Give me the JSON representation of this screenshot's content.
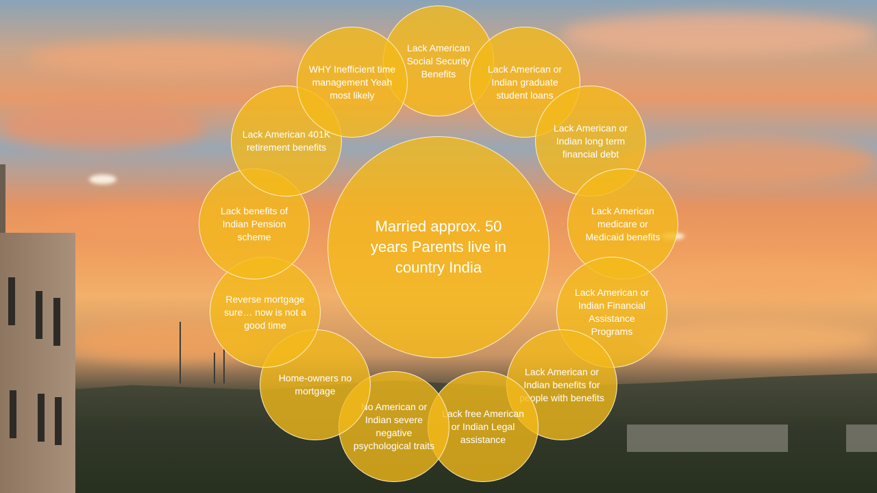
{
  "diagram": {
    "center": "Married approx. 50 years Parents live in country India",
    "items": [
      "Lack American Social Security Benefits",
      "Lack American or Indian graduate student loans",
      "Lack American or Indian long term financial debt",
      "Lack American medicare or Medicaid benefits",
      "Lack American or Indian Financial Assistance Programs",
      "Lack American or Indian benefits for people with benefits",
      "Lack free American or Indian Legal assistance",
      "No American or Indian severe negative psychological traits",
      "Home-owners no mortgage",
      "Reverse mortgage sure… now is not a good time",
      "Lack benefits of Indian Pension scheme",
      "Lack American 401K retirement benefits",
      "WHY Inefficient time management Yeah most likely"
    ]
  },
  "colors": {
    "circle_fill": "#F3BA19",
    "circle_border": "#FFF5D7",
    "text": "#FFFFFF"
  }
}
